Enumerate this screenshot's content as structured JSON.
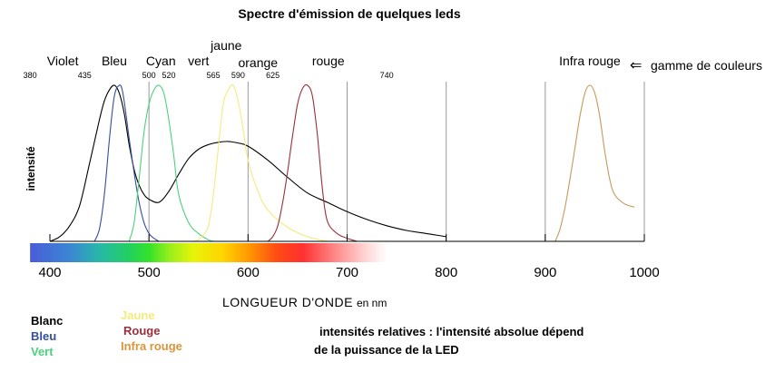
{
  "chart_data": {
    "type": "line",
    "title": "Spectre d'émission de quelques leds",
    "ylabel": "intensité",
    "xlabel": "LONGUEUR D'ONDE",
    "xunit": "en nm",
    "xlim": [
      400,
      1000
    ],
    "ylim": [
      0,
      1
    ],
    "x_ticks": [
      400,
      500,
      600,
      700,
      800,
      900,
      1000
    ],
    "x_tick_labels": [
      "400",
      "500",
      "600",
      "700",
      "800",
      "900",
      "1000"
    ],
    "boundary_labels": [
      {
        "value": 380,
        "text": "380"
      },
      {
        "value": 435,
        "text": "435"
      },
      {
        "value": 500,
        "text": "500"
      },
      {
        "value": 520,
        "text": "520"
      },
      {
        "value": 565,
        "text": "565"
      },
      {
        "value": 590,
        "text": "590"
      },
      {
        "value": 625,
        "text": "625"
      },
      {
        "value": 740,
        "text": "740"
      }
    ],
    "band_labels": [
      {
        "center": 413,
        "level": 1,
        "text": "Violet"
      },
      {
        "center": 465,
        "level": 1,
        "text": "Bleu"
      },
      {
        "center": 512,
        "level": 1,
        "text": "Cyan"
      },
      {
        "center": 550,
        "level": 1,
        "text": "vert"
      },
      {
        "center": 578,
        "level": 0,
        "text": "jaune"
      },
      {
        "center": 610,
        "level": 2,
        "text": "orange"
      },
      {
        "center": 681,
        "level": 1,
        "text": "rouge"
      },
      {
        "center": 945,
        "level": 1,
        "text": "Infra rouge"
      }
    ],
    "range_note": "gamme de couleurs",
    "series": [
      {
        "name": "Blanc",
        "color": "#000000",
        "x": [
          400,
          410,
          420,
          430,
          440,
          450,
          455,
          460,
          465,
          470,
          475,
          480,
          485,
          490,
          495,
          500,
          510,
          520,
          530,
          540,
          550,
          560,
          570,
          580,
          590,
          600,
          620,
          640,
          660,
          680,
          700,
          720,
          740,
          760,
          780,
          800
        ],
        "y": [
          0,
          0.03,
          0.1,
          0.23,
          0.5,
          0.78,
          0.9,
          0.97,
          1.0,
          0.95,
          0.82,
          0.62,
          0.46,
          0.36,
          0.3,
          0.27,
          0.25,
          0.32,
          0.43,
          0.53,
          0.59,
          0.62,
          0.635,
          0.64,
          0.63,
          0.61,
          0.52,
          0.41,
          0.31,
          0.25,
          0.19,
          0.14,
          0.1,
          0.07,
          0.05,
          0.03
        ]
      },
      {
        "name": "Bleu",
        "color": "#334fa0",
        "x": [
          445,
          450,
          455,
          460,
          465,
          470,
          473,
          476,
          480,
          485,
          490,
          495,
          500,
          505,
          510
        ],
        "y": [
          0,
          0.08,
          0.3,
          0.65,
          0.93,
          1.0,
          0.97,
          0.85,
          0.66,
          0.44,
          0.25,
          0.12,
          0.05,
          0.02,
          0
        ]
      },
      {
        "name": "Vert",
        "color": "#4bd27a",
        "x": [
          480,
          485,
          490,
          495,
          500,
          505,
          510,
          515,
          520,
          525,
          530,
          540,
          550,
          560,
          565
        ],
        "y": [
          0,
          0.12,
          0.4,
          0.7,
          0.88,
          0.97,
          1.0,
          0.95,
          0.78,
          0.55,
          0.3,
          0.12,
          0.05,
          0.01,
          0
        ]
      },
      {
        "name": "Jaune",
        "color": "#f2ec7c",
        "x": [
          545,
          552,
          560,
          565,
          570,
          575,
          580,
          585,
          590,
          595,
          600,
          610,
          620,
          640,
          660,
          680
        ],
        "y": [
          0,
          0.02,
          0.1,
          0.3,
          0.6,
          0.88,
          0.97,
          1.0,
          0.9,
          0.72,
          0.52,
          0.32,
          0.2,
          0.09,
          0.03,
          0
        ]
      },
      {
        "name": "Rouge",
        "color": "#9b2f3c",
        "x": [
          620,
          625,
          630,
          635,
          640,
          645,
          650,
          655,
          660,
          665,
          670,
          675,
          680,
          690,
          700,
          710
        ],
        "y": [
          0,
          0.03,
          0.1,
          0.25,
          0.45,
          0.68,
          0.88,
          0.98,
          1.0,
          0.93,
          0.68,
          0.34,
          0.13,
          0.05,
          0.02,
          0
        ]
      },
      {
        "name": "Infra rouge",
        "color": "#c49a5b",
        "x": [
          910,
          915,
          920,
          925,
          930,
          935,
          940,
          945,
          950,
          955,
          960,
          965,
          970,
          980,
          990
        ],
        "y": [
          0,
          0.08,
          0.22,
          0.4,
          0.6,
          0.8,
          0.95,
          1.0,
          0.95,
          0.8,
          0.58,
          0.4,
          0.3,
          0.24,
          0.22
        ]
      }
    ],
    "legend_columns": [
      [
        {
          "text": "Blanc",
          "color": "#000000"
        },
        {
          "text": "Bleu",
          "color": "#334fa0"
        },
        {
          "text": "Vert",
          "color": "#4bd27a"
        }
      ],
      [
        {
          "text": "Jaune",
          "color": "#f2ec7c"
        },
        {
          "text": "Rouge",
          "color": "#9b2f3c"
        },
        {
          "text": "Infra rouge",
          "color": "#d8953c"
        }
      ]
    ],
    "notes": [
      "intensités relatives : l'intensité absolue dépend",
      "de la puissance de la LED"
    ],
    "spectrum_bar": {
      "range": [
        380,
        740
      ],
      "stops": [
        {
          "value": 380,
          "color": "#4a5cd8"
        },
        {
          "value": 420,
          "color": "#3c86d4"
        },
        {
          "value": 450,
          "color": "#27b8a8"
        },
        {
          "value": 480,
          "color": "#22d060"
        },
        {
          "value": 500,
          "color": "#33e22a"
        },
        {
          "value": 520,
          "color": "#96ee1c"
        },
        {
          "value": 545,
          "color": "#e8f40a"
        },
        {
          "value": 575,
          "color": "#ffd400"
        },
        {
          "value": 600,
          "color": "#ff9a00"
        },
        {
          "value": 630,
          "color": "#ff4a14"
        },
        {
          "value": 655,
          "color": "#ff3030"
        },
        {
          "value": 690,
          "color": "#ff8e8e"
        },
        {
          "value": 720,
          "color": "#ffd8d8"
        },
        {
          "value": 740,
          "color": "#ffffff"
        }
      ]
    }
  }
}
